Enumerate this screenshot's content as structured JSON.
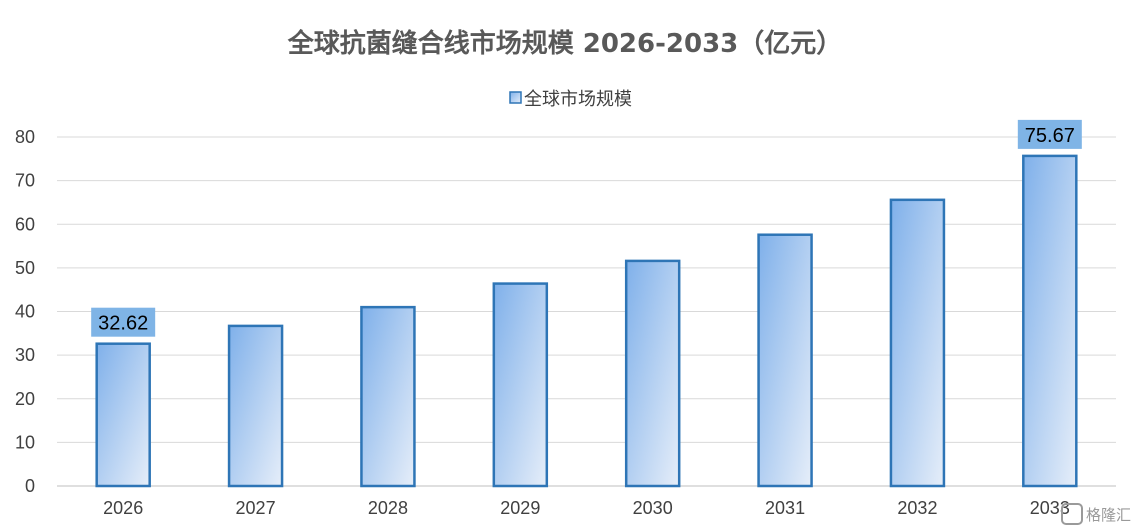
{
  "chart_data": {
    "type": "bar",
    "title": "全球抗菌缝合线市场规模 2026-2033（亿元）",
    "categories": [
      "2026",
      "2027",
      "2028",
      "2029",
      "2030",
      "2031",
      "2032",
      "2033"
    ],
    "series": [
      {
        "name": "全球市场规模",
        "values": [
          32.62,
          36.7,
          41.0,
          46.4,
          51.6,
          57.6,
          65.6,
          75.67
        ],
        "data_labels": [
          {
            "index": 0,
            "text": "32.62"
          },
          {
            "index": 7,
            "text": "75.67"
          }
        ]
      }
    ],
    "xlabel": "",
    "ylabel": "",
    "ylim": [
      0,
      80
    ],
    "yticks": [
      "0",
      "10",
      "20",
      "30",
      "40",
      "50",
      "60",
      "70",
      "80"
    ],
    "grid": true,
    "legend_position": "top-center"
  },
  "colors": {
    "bar_fill_top": "#7fb0ea",
    "bar_fill_bottom": "#e6eef9",
    "bar_stroke": "#2e75b6",
    "label_box": "#7fb4e6",
    "gridline": "#d9d9d9",
    "axis_line": "#bfbfbf"
  },
  "watermark": {
    "icon": "gelonghui-logo-icon",
    "text": "格隆汇"
  }
}
